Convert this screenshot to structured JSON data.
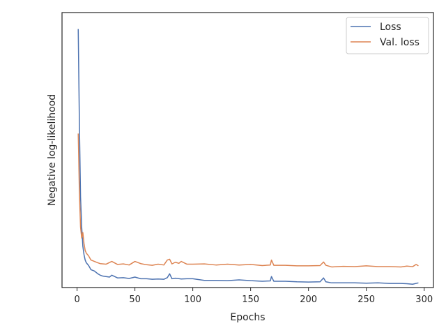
{
  "chart_data": {
    "type": "line",
    "title": "",
    "xlabel": "Epochs",
    "ylabel": "Negative log-likelihood",
    "xlim": [
      -13,
      308
    ],
    "ylim": [
      0,
      100
    ],
    "xticks": [
      0,
      50,
      100,
      150,
      200,
      250,
      300
    ],
    "yticks_shown": false,
    "grid": false,
    "legend_position": "top-right",
    "series": [
      {
        "name": "Loss",
        "color": "#4c72b0",
        "x": [
          1,
          2,
          3,
          4,
          5,
          6,
          7,
          8,
          10,
          12,
          15,
          18,
          20,
          22,
          25,
          28,
          30,
          35,
          40,
          45,
          50,
          55,
          60,
          65,
          70,
          75,
          78,
          80,
          82,
          85,
          90,
          95,
          100,
          110,
          120,
          130,
          140,
          150,
          160,
          167,
          168,
          170,
          180,
          190,
          200,
          210,
          213,
          215,
          220,
          230,
          240,
          250,
          260,
          270,
          280,
          285,
          290,
          295
        ],
        "y": [
          94,
          60,
          33,
          22,
          15,
          12,
          10,
          9,
          8,
          6.5,
          6,
          5,
          4.5,
          4.2,
          4,
          3.8,
          4.5,
          3.5,
          3.6,
          3.3,
          3.8,
          3.2,
          3.2,
          3,
          3.1,
          3,
          3.6,
          5,
          3.2,
          3.4,
          3.1,
          3.2,
          3.2,
          2.6,
          2.6,
          2.5,
          2.8,
          2.5,
          2.3,
          2.4,
          4,
          2.3,
          2.3,
          2.1,
          2,
          2.1,
          3.5,
          2.1,
          1.7,
          1.7,
          1.7,
          1.6,
          1.7,
          1.5,
          1.5,
          1.4,
          1.2,
          1.7
        ]
      },
      {
        "name": "Val. loss",
        "color": "#dd8452",
        "x": [
          1,
          2,
          3,
          4,
          5,
          6,
          7,
          8,
          10,
          12,
          15,
          18,
          20,
          25,
          30,
          35,
          40,
          45,
          50,
          55,
          60,
          65,
          70,
          75,
          78,
          80,
          82,
          85,
          88,
          90,
          95,
          100,
          110,
          120,
          130,
          140,
          150,
          160,
          167,
          168,
          170,
          180,
          190,
          200,
          210,
          213,
          215,
          220,
          230,
          240,
          250,
          260,
          270,
          280,
          285,
          290,
          293,
          295
        ],
        "y": [
          56,
          35,
          22,
          18,
          20,
          16,
          13.5,
          12.5,
          11.5,
          10,
          9.5,
          9,
          8.7,
          8.5,
          9.5,
          8.4,
          8.6,
          8.2,
          9.5,
          8.7,
          8.3,
          8.1,
          8.5,
          8.2,
          10,
          10.3,
          8.6,
          9.2,
          8.8,
          9.5,
          8.5,
          8.5,
          8.6,
          8.2,
          8.5,
          8.2,
          8.4,
          8,
          8.2,
          10,
          8.1,
          8.1,
          7.9,
          7.9,
          8,
          9.3,
          8.1,
          7.5,
          7.7,
          7.6,
          7.9,
          7.6,
          7.6,
          7.5,
          7.8,
          7.6,
          8.4,
          7.9
        ]
      }
    ]
  }
}
